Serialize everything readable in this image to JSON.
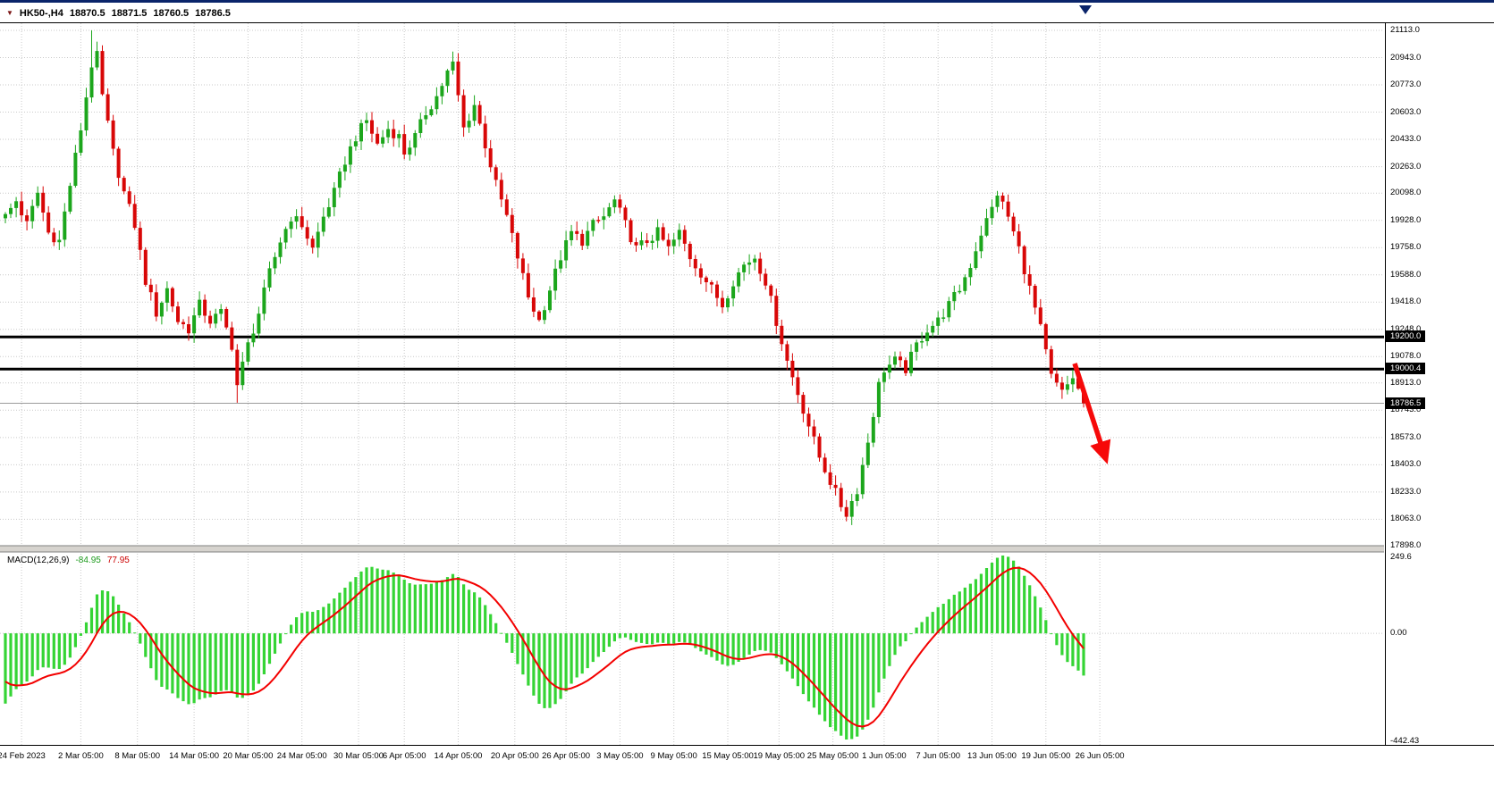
{
  "window": {
    "symbol": "HK50-,H4",
    "open": "18870.5",
    "high": "18871.5",
    "low": "18760.5",
    "close": "18786.5"
  },
  "colors": {
    "bull": "#1CA61C",
    "bear": "#D80707",
    "grid": "#C9C9C9",
    "level_line": "#000000",
    "current_price_line": "#9B9B9B",
    "macd_hist": "#35D435",
    "macd_signal": "#F30000",
    "arrow": "#F60909",
    "axis_text": "#000000",
    "top_edge": "#0A246A"
  },
  "price_axis": {
    "top_value": 21113.0,
    "bottom_value": 17898.0,
    "ticks": [
      {
        "label": "21113.0",
        "value": 21113.0
      },
      {
        "label": "20943.0",
        "value": 20943.0
      },
      {
        "label": "20773.0",
        "value": 20773.0
      },
      {
        "label": "20603.0",
        "value": 20603.0
      },
      {
        "label": "20433.0",
        "value": 20433.0
      },
      {
        "label": "20263.0",
        "value": 20263.0
      },
      {
        "label": "20098.0",
        "value": 20098.0
      },
      {
        "label": "19928.0",
        "value": 19928.0
      },
      {
        "label": "19758.0",
        "value": 19758.0
      },
      {
        "label": "19588.0",
        "value": 19588.0
      },
      {
        "label": "19418.0",
        "value": 19418.0
      },
      {
        "label": "19248.0",
        "value": 19248.0
      },
      {
        "label": "19078.0",
        "value": 19078.0
      },
      {
        "label": "18913.0",
        "value": 18913.0
      },
      {
        "label": "18743.0",
        "value": 18743.0
      },
      {
        "label": "18573.0",
        "value": 18573.0
      },
      {
        "label": "18403.0",
        "value": 18403.0
      },
      {
        "label": "18233.0",
        "value": 18233.0
      },
      {
        "label": "18063.0",
        "value": 18063.0
      },
      {
        "label": "17898.0",
        "value": 17898.0
      }
    ]
  },
  "levels": [
    {
      "label": "19200.0",
      "value": 19200.0
    },
    {
      "label": "19000.4",
      "value": 19000.4
    }
  ],
  "current_price": {
    "label": "18786.5",
    "value": 18786.5
  },
  "macd_panel": {
    "label": "MACD(12,26,9)",
    "value_main": "-84.95",
    "value_signal": "77.95",
    "scale_top": "249.6",
    "scale_zero": "0.00",
    "scale_bottom": "-442.43"
  },
  "chart_data": {
    "type": "candlestick",
    "title": "HK50-,H4",
    "timeframe": "H4",
    "ylim": [
      17898.0,
      21113.0
    ],
    "n_candles": 201,
    "bar_spacing": 6.03,
    "x_origin": 6,
    "ohlc_current": {
      "open": 18870.5,
      "high": 18871.5,
      "low": 18760.5,
      "close": 18786.5
    },
    "last_close": 18786.5,
    "levels": [
      19200.0,
      19000.4
    ],
    "price_keyframes": [
      [
        0,
        19950
      ],
      [
        2,
        20050
      ],
      [
        4,
        19900
      ],
      [
        6,
        20100
      ],
      [
        8,
        19850
      ],
      [
        10,
        19800
      ],
      [
        12,
        20150
      ],
      [
        14,
        20500
      ],
      [
        16,
        20900
      ],
      [
        17,
        20950
      ],
      [
        18,
        20700
      ],
      [
        20,
        20350
      ],
      [
        22,
        20100
      ],
      [
        24,
        19900
      ],
      [
        26,
        19550
      ],
      [
        28,
        19350
      ],
      [
        30,
        19500
      ],
      [
        32,
        19300
      ],
      [
        34,
        19250
      ],
      [
        36,
        19400
      ],
      [
        38,
        19300
      ],
      [
        40,
        19350
      ],
      [
        42,
        19150
      ],
      [
        43,
        18900
      ],
      [
        45,
        19150
      ],
      [
        47,
        19350
      ],
      [
        49,
        19600
      ],
      [
        51,
        19800
      ],
      [
        53,
        19950
      ],
      [
        55,
        19900
      ],
      [
        57,
        19750
      ],
      [
        59,
        19950
      ],
      [
        61,
        20100
      ],
      [
        63,
        20300
      ],
      [
        65,
        20450
      ],
      [
        67,
        20550
      ],
      [
        69,
        20400
      ],
      [
        71,
        20500
      ],
      [
        73,
        20450
      ],
      [
        74,
        20350
      ],
      [
        76,
        20450
      ],
      [
        78,
        20600
      ],
      [
        80,
        20700
      ],
      [
        82,
        20850
      ],
      [
        83,
        20900
      ],
      [
        85,
        20500
      ],
      [
        87,
        20650
      ],
      [
        89,
        20400
      ],
      [
        91,
        20150
      ],
      [
        93,
        19950
      ],
      [
        95,
        19700
      ],
      [
        97,
        19450
      ],
      [
        99,
        19300
      ],
      [
        101,
        19500
      ],
      [
        103,
        19700
      ],
      [
        105,
        19850
      ],
      [
        107,
        19800
      ],
      [
        109,
        19900
      ],
      [
        111,
        19950
      ],
      [
        113,
        20050
      ],
      [
        115,
        19900
      ],
      [
        117,
        19750
      ],
      [
        119,
        19800
      ],
      [
        121,
        19850
      ],
      [
        123,
        19750
      ],
      [
        125,
        19850
      ],
      [
        127,
        19700
      ],
      [
        129,
        19600
      ],
      [
        131,
        19500
      ],
      [
        133,
        19400
      ],
      [
        135,
        19550
      ],
      [
        137,
        19650
      ],
      [
        139,
        19700
      ],
      [
        141,
        19550
      ],
      [
        143,
        19300
      ],
      [
        145,
        19050
      ],
      [
        147,
        18850
      ],
      [
        149,
        18650
      ],
      [
        151,
        18450
      ],
      [
        153,
        18300
      ],
      [
        155,
        18150
      ],
      [
        156,
        18100
      ],
      [
        158,
        18250
      ],
      [
        160,
        18550
      ],
      [
        162,
        18900
      ],
      [
        163,
        19000
      ],
      [
        165,
        19050
      ],
      [
        167,
        19000
      ],
      [
        169,
        19150
      ],
      [
        171,
        19250
      ],
      [
        173,
        19300
      ],
      [
        175,
        19400
      ],
      [
        177,
        19500
      ],
      [
        179,
        19650
      ],
      [
        181,
        19850
      ],
      [
        183,
        20000
      ],
      [
        184,
        20100
      ],
      [
        186,
        19950
      ],
      [
        188,
        19750
      ],
      [
        190,
        19500
      ],
      [
        192,
        19250
      ],
      [
        194,
        18950
      ],
      [
        196,
        18850
      ],
      [
        198,
        18950
      ],
      [
        200,
        18786.5
      ]
    ],
    "wick_spikes_high": [
      [
        16,
        21113
      ]
    ],
    "wick_spikes_low": [
      [
        43,
        18790
      ],
      [
        156,
        18050
      ]
    ],
    "x_ticks": [
      {
        "i": 3,
        "label": "24 Feb 2023"
      },
      {
        "i": 14,
        "label": "2 Mar 05:00"
      },
      {
        "i": 24.5,
        "label": "8 Mar 05:00"
      },
      {
        "i": 35,
        "label": "14 Mar 05:00"
      },
      {
        "i": 45,
        "label": "20 Mar 05:00"
      },
      {
        "i": 55,
        "label": "24 Mar 05:00"
      },
      {
        "i": 65.5,
        "label": "30 Mar 05:00"
      },
      {
        "i": 74,
        "label": "6 Apr 05:00"
      },
      {
        "i": 84,
        "label": "14 Apr 05:00"
      },
      {
        "i": 94.5,
        "label": "20 Apr 05:00"
      },
      {
        "i": 104,
        "label": "26 Apr 05:00"
      },
      {
        "i": 114,
        "label": "3 May 05:00"
      },
      {
        "i": 124,
        "label": "9 May 05:00"
      },
      {
        "i": 134,
        "label": "15 May 05:00"
      },
      {
        "i": 143.5,
        "label": "19 May 05:00"
      },
      {
        "i": 153.5,
        "label": "25 May 05:00"
      },
      {
        "i": 163,
        "label": "1 Jun 05:00"
      },
      {
        "i": 173,
        "label": "7 Jun 05:00"
      },
      {
        "i": 183,
        "label": "13 Jun 05:00"
      },
      {
        "i": 193,
        "label": "19 Jun 05:00"
      },
      {
        "i": 203,
        "label": "26 Jun 05:00"
      }
    ],
    "indicator": {
      "name": "MACD",
      "fast": 12,
      "slow": 26,
      "signal": 9,
      "current_main": -84.95,
      "current_signal": 77.95,
      "scale_max": 249.6,
      "scale_min": -442.43
    },
    "macd_seed": {
      "fast_offset": -60,
      "slow_offset": 220,
      "signal_offset": 80
    },
    "annotations": [
      {
        "type": "hline",
        "value": 19200.0
      },
      {
        "type": "hline",
        "value": 19000.4
      },
      {
        "type": "arrow-down-right",
        "from_price": 19030,
        "to_price": 18450,
        "near_time": "end-of-chart"
      }
    ]
  }
}
